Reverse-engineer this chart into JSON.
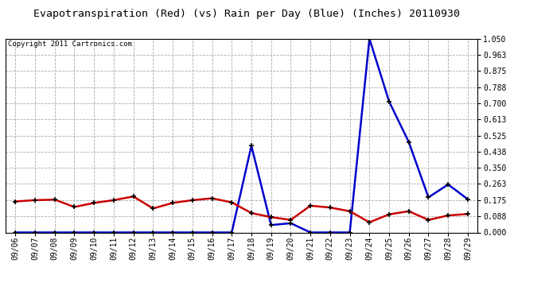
{
  "title": "Evapotranspiration (Red) (vs) Rain per Day (Blue) (Inches) 20110930",
  "copyright": "Copyright 2011 Cartronics.com",
  "dates": [
    "09/06",
    "09/07",
    "09/08",
    "09/09",
    "09/10",
    "09/11",
    "09/12",
    "09/13",
    "09/14",
    "09/15",
    "09/16",
    "09/17",
    "09/18",
    "09/19",
    "09/20",
    "09/21",
    "09/22",
    "09/23",
    "09/24",
    "09/25",
    "09/26",
    "09/27",
    "09/28",
    "09/29"
  ],
  "rain_blue": [
    0.0,
    0.0,
    0.0,
    0.0,
    0.0,
    0.0,
    0.0,
    0.0,
    0.0,
    0.0,
    0.0,
    0.0,
    0.47,
    0.04,
    0.05,
    0.0,
    0.0,
    0.0,
    1.05,
    0.71,
    0.49,
    0.19,
    0.26,
    0.18
  ],
  "et_red": [
    0.168,
    0.175,
    0.178,
    0.138,
    0.16,
    0.175,
    0.195,
    0.13,
    0.16,
    0.175,
    0.185,
    0.163,
    0.105,
    0.083,
    0.068,
    0.145,
    0.135,
    0.115,
    0.055,
    0.098,
    0.115,
    0.068,
    0.092,
    0.1
  ],
  "ylim_min": 0.0,
  "ylim_max": 1.05,
  "yticks": [
    0.0,
    0.088,
    0.175,
    0.263,
    0.35,
    0.438,
    0.525,
    0.613,
    0.7,
    0.788,
    0.875,
    0.963,
    1.05
  ],
  "line_color_blue": "#0000cc",
  "line_color_red": "#cc0000",
  "bg_color": "#ffffff",
  "grid_color": "#aaaaaa",
  "title_fontsize": 9.5,
  "copyright_fontsize": 6.5,
  "tick_fontsize": 7
}
